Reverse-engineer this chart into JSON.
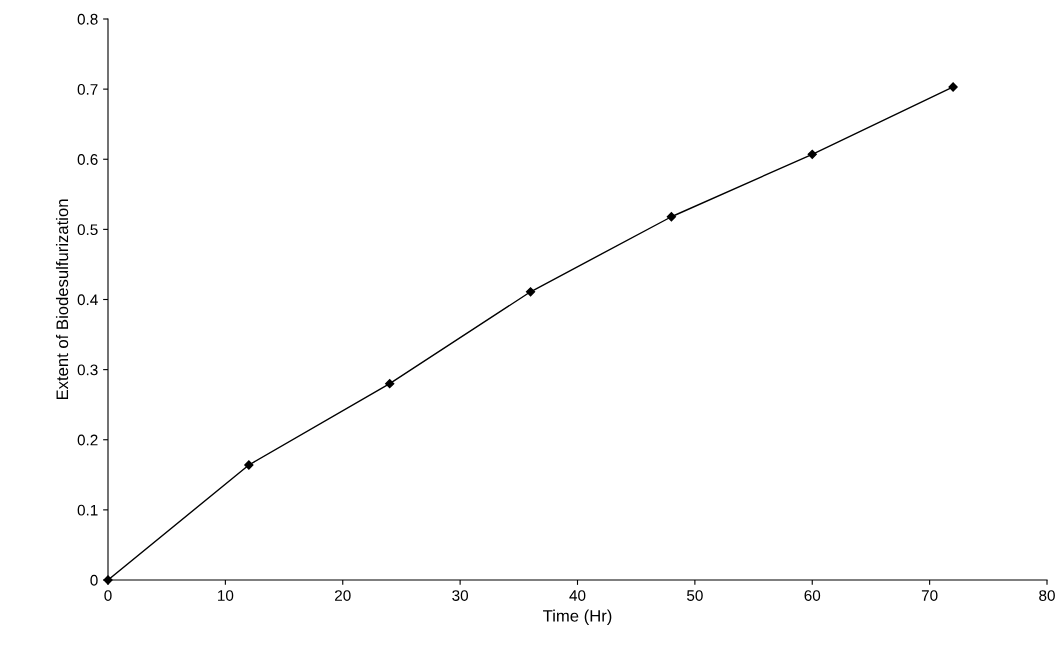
{
  "chart_data": {
    "type": "line",
    "xlabel": "Time (Hr)",
    "ylabel": "Extent of Biodesulfurization",
    "x": [
      0,
      12,
      24,
      36,
      48,
      60,
      72
    ],
    "series": [
      {
        "color": "#000000",
        "values": [
          0,
          0.164,
          0.28,
          0.411,
          0.518,
          0.607,
          0.703
        ]
      }
    ],
    "xlim": [
      0,
      80
    ],
    "xticks": [
      0,
      10,
      20,
      30,
      40,
      50,
      60,
      70,
      80
    ],
    "ylim": [
      0,
      0.8
    ],
    "yticks": [
      0,
      0.1,
      0.2,
      0.3,
      0.4,
      0.5,
      0.6,
      0.7,
      0.8
    ],
    "marker": "diamond",
    "line_style": "solid",
    "grid": false
  }
}
